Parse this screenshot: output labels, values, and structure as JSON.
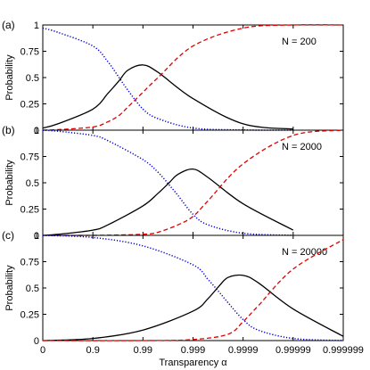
{
  "chart_data": [
    {
      "type": "line",
      "panel_label": "(a)",
      "annotation": "N = 200",
      "ylabel": "Probability",
      "ylim": [
        0,
        1
      ],
      "yticks": [
        "0",
        "0.25",
        "0.5",
        "0.75",
        "1"
      ],
      "xscale": "-log10(1 - alpha)",
      "xlim": [
        "0",
        "0.999999"
      ],
      "series": [
        {
          "color": "#0000cc",
          "style": "dotted",
          "x": [
            0,
            0.5,
            0.9,
            0.95,
            0.97,
            0.98,
            0.99,
            0.995,
            0.999,
            0.9999,
            0.99999
          ],
          "values": [
            0.97,
            0.93,
            0.8,
            0.65,
            0.5,
            0.38,
            0.2,
            0.11,
            0.02,
            0.002,
            0.0
          ]
        },
        {
          "color": "#000000",
          "style": "solid",
          "x": [
            0,
            0.5,
            0.9,
            0.95,
            0.97,
            0.98,
            0.99,
            0.995,
            0.999,
            0.9999,
            0.99999
          ],
          "values": [
            0.02,
            0.06,
            0.2,
            0.35,
            0.47,
            0.57,
            0.62,
            0.55,
            0.3,
            0.06,
            0.01
          ]
        },
        {
          "color": "#dd0000",
          "style": "dashed",
          "x": [
            0,
            0.5,
            0.9,
            0.95,
            0.97,
            0.98,
            0.99,
            0.995,
            0.999,
            0.9999,
            0.99999,
            0.999999
          ],
          "values": [
            0.0,
            0.005,
            0.03,
            0.08,
            0.14,
            0.22,
            0.36,
            0.5,
            0.8,
            0.97,
            1.0,
            1.0
          ]
        }
      ]
    },
    {
      "type": "line",
      "panel_label": "(b)",
      "annotation": "N = 2000",
      "ylabel": "Probability",
      "ylim": [
        0,
        1
      ],
      "yticks": [
        "0",
        "0.25",
        "0.5",
        "0.75",
        "1"
      ],
      "xscale": "-log10(1 - alpha)",
      "xlim": [
        "0",
        "0.999999"
      ],
      "series": [
        {
          "color": "#0000cc",
          "style": "dotted",
          "x": [
            0,
            0.5,
            0.9,
            0.95,
            0.99,
            0.995,
            0.997,
            0.998,
            0.999,
            0.9995,
            0.9999,
            0.99999
          ],
          "values": [
            1.0,
            0.99,
            0.95,
            0.9,
            0.72,
            0.6,
            0.48,
            0.38,
            0.2,
            0.1,
            0.02,
            0.0
          ]
        },
        {
          "color": "#000000",
          "style": "solid",
          "x": [
            0,
            0.5,
            0.9,
            0.95,
            0.99,
            0.995,
            0.997,
            0.998,
            0.999,
            0.9995,
            0.9999,
            0.99999
          ],
          "values": [
            0.0,
            0.01,
            0.05,
            0.1,
            0.28,
            0.4,
            0.5,
            0.58,
            0.63,
            0.55,
            0.3,
            0.05
          ]
        },
        {
          "color": "#dd0000",
          "style": "dashed",
          "x": [
            0,
            0.9,
            0.99,
            0.995,
            0.998,
            0.999,
            0.9995,
            0.9999,
            0.99999,
            0.999999
          ],
          "values": [
            0.0,
            0.0,
            0.01,
            0.03,
            0.1,
            0.18,
            0.33,
            0.68,
            0.95,
            1.0
          ]
        }
      ]
    },
    {
      "type": "line",
      "panel_label": "(c)",
      "annotation": "N = 20000",
      "ylabel": "Probability",
      "xlabel": "Transparency α",
      "ylim": [
        0,
        1
      ],
      "yticks": [
        "0",
        "0.25",
        "0.5",
        "0.75",
        "1"
      ],
      "xscale": "-log10(1 - alpha)",
      "xticks": [
        "0",
        "0.9",
        "0.99",
        "0.999",
        "0.9999",
        "0.99999",
        "0.999999"
      ],
      "xlim": [
        "0",
        "0.999999"
      ],
      "series": [
        {
          "color": "#0000cc",
          "style": "dotted",
          "x": [
            0,
            0.9,
            0.99,
            0.999,
            0.9995,
            0.9997,
            0.9998,
            0.9999,
            0.99995,
            0.99999,
            0.999999
          ],
          "values": [
            1.0,
            0.98,
            0.9,
            0.72,
            0.58,
            0.46,
            0.36,
            0.2,
            0.1,
            0.02,
            0.0
          ]
        },
        {
          "color": "#000000",
          "style": "solid",
          "x": [
            0,
            0.9,
            0.99,
            0.999,
            0.9995,
            0.9997,
            0.9998,
            0.9999,
            0.99995,
            0.99999,
            0.999999
          ],
          "values": [
            0.0,
            0.02,
            0.1,
            0.28,
            0.4,
            0.52,
            0.6,
            0.62,
            0.55,
            0.3,
            0.04
          ]
        },
        {
          "color": "#dd0000",
          "style": "dashed",
          "x": [
            0,
            0.99,
            0.999,
            0.9998,
            0.9999,
            0.99995,
            0.99999,
            0.999999
          ],
          "values": [
            0.0,
            0.0,
            0.01,
            0.06,
            0.18,
            0.33,
            0.68,
            0.96
          ]
        }
      ]
    }
  ]
}
